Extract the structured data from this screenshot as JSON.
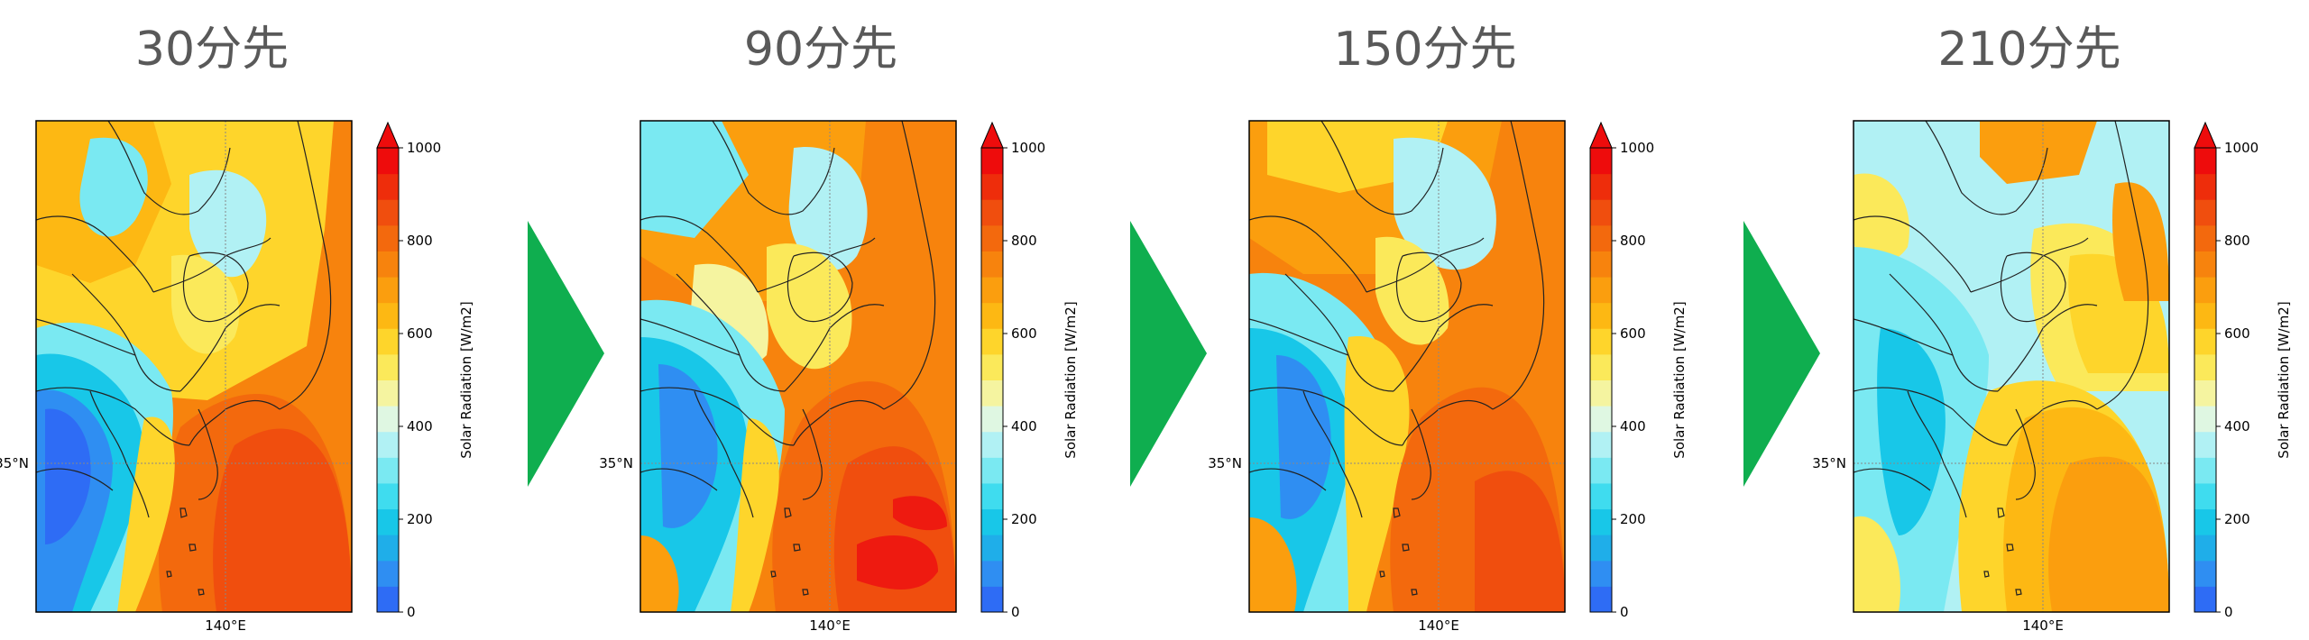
{
  "panels": [
    {
      "title": "30分先",
      "map_type": "t30"
    },
    {
      "title": "90分先",
      "map_type": "t90"
    },
    {
      "title": "150分先",
      "map_type": "t150"
    },
    {
      "title": "210分先",
      "map_type": "t210"
    }
  ],
  "axes": {
    "lat_label": "35°N",
    "lon_label": "140°E"
  },
  "colorbar": {
    "label": "Solar Radiation [W/m2]",
    "ticks": [
      "0",
      "200",
      "400",
      "600",
      "800",
      "1000"
    ],
    "colors": [
      "#2e6cf5",
      "#2f8ef2",
      "#1faee9",
      "#18c7e8",
      "#3fdcef",
      "#7ae9f2",
      "#b1f1f4",
      "#dff7e2",
      "#f5f4a0",
      "#fbe95a",
      "#fed52b",
      "#fdb813",
      "#fb9e0e",
      "#f7830d",
      "#f3690d",
      "#f04e0e",
      "#ee2d0b",
      "#ee0c0c"
    ],
    "extend": "max"
  },
  "arrow_color": "#0fae4f",
  "chart_data": [
    {
      "type": "heatmap",
      "title": "30分先",
      "xlabel": "",
      "ylabel": "",
      "x_tick_labels": [
        "140°E"
      ],
      "y_tick_labels": [
        "35°N"
      ],
      "colorbar": {
        "label": "Solar Radiation [W/m2]",
        "range": [
          0,
          1000
        ],
        "ticks": [
          0,
          200,
          400,
          600,
          800,
          1000
        ]
      },
      "description_values": {
        "north_west": 700,
        "north_central": 450,
        "central": 750,
        "east_ocean": 850,
        "south_west": 250
      }
    },
    {
      "type": "heatmap",
      "title": "90分先",
      "xlabel": "",
      "ylabel": "",
      "x_tick_labels": [
        "140°E"
      ],
      "y_tick_labels": [
        "35°N"
      ],
      "colorbar": {
        "label": "Solar Radiation [W/m2]",
        "range": [
          0,
          1000
        ],
        "ticks": [
          0,
          200,
          400,
          600,
          800,
          1000
        ]
      },
      "description_values": {
        "north_west": 550,
        "north_central": 700,
        "central": 650,
        "east_ocean": 880,
        "south_west": 250
      }
    },
    {
      "type": "heatmap",
      "title": "150分先",
      "xlabel": "",
      "ylabel": "",
      "x_tick_labels": [
        "140°E"
      ],
      "y_tick_labels": [
        "35°N"
      ],
      "colorbar": {
        "label": "Solar Radiation [W/m2]",
        "range": [
          0,
          1000
        ],
        "ticks": [
          0,
          200,
          400,
          600,
          800,
          1000
        ]
      },
      "description_values": {
        "north_west": 650,
        "north_central": 700,
        "central": 550,
        "east_ocean": 800,
        "south_west": 300
      }
    },
    {
      "type": "heatmap",
      "title": "210分先",
      "xlabel": "",
      "ylabel": "",
      "x_tick_labels": [
        "140°E"
      ],
      "y_tick_labels": [
        "35°N"
      ],
      "colorbar": {
        "label": "Solar Radiation [W/m2]",
        "range": [
          0,
          1000
        ],
        "ticks": [
          0,
          200,
          400,
          600,
          800,
          1000
        ]
      },
      "description_values": {
        "north_west": 450,
        "north_central": 650,
        "central": 450,
        "east_ocean": 700,
        "south_west": 350
      }
    }
  ]
}
